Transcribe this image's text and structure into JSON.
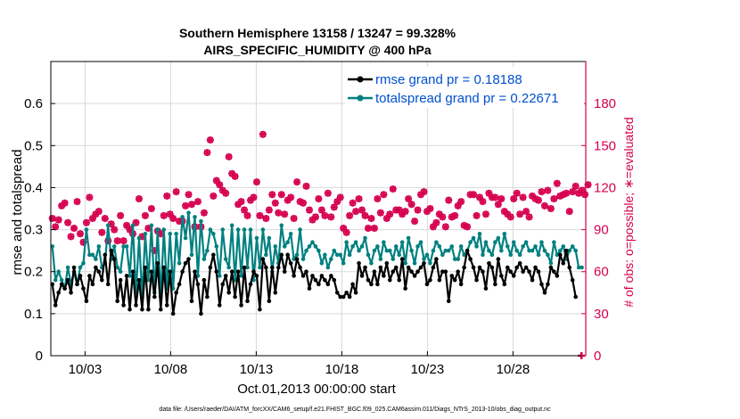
{
  "chart_data": {
    "type": "line",
    "title": "Southern Hemisphere 13158 / 13247 = 99.328%",
    "subtitle": "AIRS_SPECIFIC_HUMIDITY @ 400 hPa",
    "xlabel": "Oct.01,2013 00:00:00 start",
    "ylabel": "rmse and totalspread",
    "ylabel_right": "# of obs: o=possible; ∗=evaluated",
    "footnote": "data file: /Users/raeder/DAI/ATM_forcXX/CAM6_setup/f.e21.FHIST_BGC.f09_025.CAM6assim.011/Diags_NTrS_2013-10/obs_diag_output.nc",
    "x_range": [
      1,
      32.25
    ],
    "x_tick_values": [
      3,
      8,
      13,
      18,
      23,
      28
    ],
    "x_tick_labels": [
      "10/03",
      "10/08",
      "10/13",
      "10/18",
      "10/23",
      "10/28"
    ],
    "ylim": [
      0,
      0.7
    ],
    "y_ticks": [
      0,
      0.1,
      0.2,
      0.3,
      0.4,
      0.5,
      0.6
    ],
    "y_tick_labels": [
      "0",
      "0.1",
      "0.2",
      "0.3",
      "0.4",
      "0.5",
      "0.6"
    ],
    "ylim_right": [
      0,
      210
    ],
    "y_ticks_right": [
      0,
      30,
      60,
      90,
      120,
      150,
      180
    ],
    "y_tick_labels_right": [
      "0",
      "30",
      "60",
      "90",
      "120",
      "150",
      "180"
    ],
    "grid": true,
    "legend_position": "top-right",
    "colors": {
      "rmse": "#000000",
      "totalspread": "#008080",
      "obs": "#d6004f",
      "legend_text": "#0050d0"
    },
    "series": [
      {
        "name": "rmse grand pr = 0.18188",
        "color": "#000000",
        "values": [
          0.17,
          0.12,
          0.15,
          0.17,
          0.16,
          0.18,
          0.15,
          0.21,
          0.17,
          0.19,
          0.16,
          0.13,
          0.19,
          0.17,
          0.21,
          0.2,
          0.18,
          0.24,
          0.17,
          0.25,
          0.23,
          0.13,
          0.18,
          0.12,
          0.19,
          0.11,
          0.2,
          0.12,
          0.18,
          0.11,
          0.21,
          0.11,
          0.2,
          0.14,
          0.22,
          0.11,
          0.21,
          0.12,
          0.2,
          0.1,
          0.15,
          0.17,
          0.2,
          0.22,
          0.23,
          0.13,
          0.2,
          0.17,
          0.1,
          0.18,
          0.14,
          0.21,
          0.24,
          0.2,
          0.12,
          0.17,
          0.19,
          0.15,
          0.2,
          0.14,
          0.2,
          0.12,
          0.21,
          0.13,
          0.17,
          0.2,
          0.19,
          0.11,
          0.23,
          0.21,
          0.13,
          0.21,
          0.15,
          0.21,
          0.24,
          0.2,
          0.24,
          0.22,
          0.19,
          0.23,
          0.21,
          0.19,
          0.2,
          0.16,
          0.19,
          0.18,
          0.17,
          0.19,
          0.18,
          0.17,
          0.19,
          0.18,
          0.15,
          0.14,
          0.14,
          0.15,
          0.14,
          0.17,
          0.15,
          0.22,
          0.19,
          0.21,
          0.18,
          0.17,
          0.2,
          0.17,
          0.21,
          0.19,
          0.22,
          0.18,
          0.2,
          0.21,
          0.18,
          0.23,
          0.16,
          0.21,
          0.2,
          0.19,
          0.2,
          0.21,
          0.22,
          0.17,
          0.18,
          0.21,
          0.23,
          0.18,
          0.2,
          0.2,
          0.13,
          0.19,
          0.18,
          0.2,
          0.17,
          0.21,
          0.25,
          0.23,
          0.21,
          0.18,
          0.21,
          0.2,
          0.16,
          0.22,
          0.21,
          0.17,
          0.23,
          0.19,
          0.17,
          0.21,
          0.2,
          0.19,
          0.21,
          0.22,
          0.2,
          0.21,
          0.2,
          0.18,
          0.21,
          0.2,
          0.17,
          0.15,
          0.17,
          0.21,
          0.2,
          0.19,
          0.24,
          0.22,
          0.25,
          0.21,
          0.18,
          0.14
        ]
      },
      {
        "name": "totalspread grand pr = 0.22671",
        "color": "#008080",
        "values": [
          0.26,
          0.18,
          0.2,
          0.18,
          0.16,
          0.21,
          0.17,
          0.2,
          0.17,
          0.21,
          0.22,
          0.3,
          0.24,
          0.24,
          0.23,
          0.26,
          0.21,
          0.22,
          0.31,
          0.23,
          0.26,
          0.21,
          0.2,
          0.26,
          0.26,
          0.19,
          0.31,
          0.15,
          0.28,
          0.14,
          0.29,
          0.18,
          0.31,
          0.15,
          0.3,
          0.14,
          0.3,
          0.16,
          0.29,
          0.16,
          0.29,
          0.22,
          0.33,
          0.28,
          0.34,
          0.24,
          0.33,
          0.19,
          0.32,
          0.23,
          0.25,
          0.3,
          0.29,
          0.26,
          0.19,
          0.3,
          0.23,
          0.21,
          0.31,
          0.18,
          0.3,
          0.19,
          0.3,
          0.21,
          0.3,
          0.18,
          0.28,
          0.21,
          0.3,
          0.24,
          0.28,
          0.2,
          0.26,
          0.22,
          0.31,
          0.26,
          0.27,
          0.29,
          0.23,
          0.24,
          0.3,
          0.23,
          0.25,
          0.26,
          0.27,
          0.26,
          0.25,
          0.22,
          0.24,
          0.21,
          0.23,
          0.25,
          0.24,
          0.24,
          0.22,
          0.27,
          0.24,
          0.26,
          0.27,
          0.25,
          0.26,
          0.28,
          0.24,
          0.22,
          0.25,
          0.26,
          0.23,
          0.27,
          0.25,
          0.25,
          0.23,
          0.26,
          0.24,
          0.27,
          0.22,
          0.28,
          0.25,
          0.22,
          0.26,
          0.27,
          0.23,
          0.24,
          0.22,
          0.25,
          0.27,
          0.26,
          0.24,
          0.25,
          0.25,
          0.26,
          0.23,
          0.23,
          0.26,
          0.24,
          0.25,
          0.27,
          0.28,
          0.26,
          0.29,
          0.24,
          0.27,
          0.25,
          0.24,
          0.27,
          0.28,
          0.25,
          0.29,
          0.26,
          0.24,
          0.27,
          0.25,
          0.24,
          0.26,
          0.27,
          0.25,
          0.25,
          0.26,
          0.24,
          0.27,
          0.25,
          0.24,
          0.22,
          0.27,
          0.24,
          0.25,
          0.26,
          0.23,
          0.25,
          0.26,
          0.25,
          0.21,
          0.21
        ]
      },
      {
        "name": "obs",
        "color": "#d6004f",
        "axis": "right",
        "values": [
          98,
          92,
          97,
          107,
          109,
          95,
          85,
          91,
          110,
          87,
          81,
          95,
          113,
          98,
          101,
          103,
          88,
          98,
          82,
          94,
          90,
          82,
          100,
          82,
          93,
          90,
          87,
          95,
          112,
          85,
          100,
          91,
          105,
          75,
          89,
          87,
          100,
          114,
          101,
          98,
          117,
          96,
          96,
          107,
          115,
          108,
          92,
          110,
          92,
          102,
          145,
          154,
          114,
          125,
          122,
          118,
          116,
          142,
          130,
          128,
          108,
          110,
          104,
          100,
          111,
          113,
          124,
          100,
          158,
          98,
          104,
          115,
          109,
          102,
          115,
          101,
          111,
          113,
          98,
          124,
          110,
          109,
          121,
          104,
          97,
          99,
          112,
          104,
          100,
          116,
          99,
          106,
          110,
          113,
          91,
          88,
          100,
          109,
          103,
          112,
          104,
          100,
          91,
          98,
          91,
          112,
          102,
          115,
          98,
          101,
          119,
          104,
          104,
          101,
          103,
          112,
          108,
          96,
          104,
          115,
          117,
          103,
          105,
          92,
          95,
          101,
          99,
          92,
          111,
          99,
          100,
          107,
          110,
          93,
          92,
          115,
          115,
          100,
          113,
          110,
          101,
          116,
          113,
          113,
          108,
          112,
          103,
          101,
          99,
          112,
          116,
          101,
          113,
          103,
          99,
          114,
          112,
          111,
          117,
          107,
          118,
          105,
          112,
          123,
          114,
          115,
          116,
          103,
          117,
          121,
          116,
          118,
          115,
          122
        ]
      }
    ],
    "obs_total_points": [
      {
        "x": 32.0,
        "y": 0
      }
    ]
  }
}
